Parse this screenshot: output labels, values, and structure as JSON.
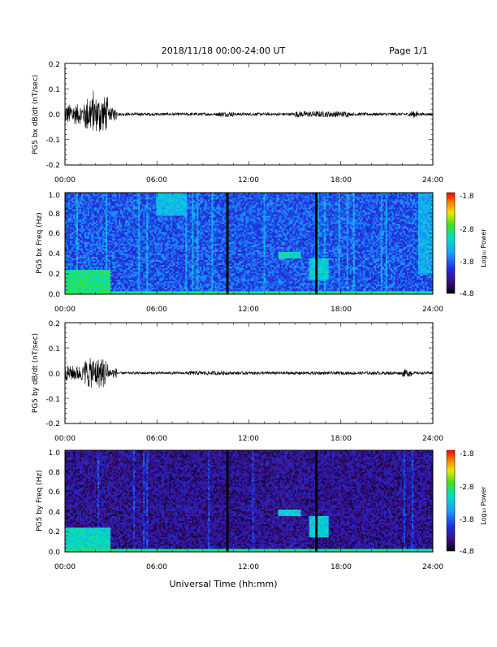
{
  "header": {
    "title": "2018/11/18  00:00-24:00 UT",
    "page": "Page 1/1"
  },
  "footer": {
    "xlabel": "Universal Time (hh:mm)"
  },
  "time_ticks": [
    "00:00",
    "06:00",
    "12:00",
    "18:00",
    "24:00"
  ],
  "colorbar": {
    "labels": [
      "-1.8",
      "-2.8",
      "-3.8",
      "-4.8"
    ],
    "title": "Log₁₀ Power"
  },
  "colors": {
    "stripe": "#000000",
    "line": "#000000"
  },
  "chart_data": [
    {
      "type": "line",
      "ylabel": "PG5 bx dB/dt (nT/sec)",
      "xlim": [
        0,
        24
      ],
      "ylim": [
        -0.2,
        0.2
      ],
      "yticks": [
        "0.2",
        "0.1",
        "0.0",
        "-0.1",
        "-0.2"
      ],
      "xticks": [
        "00:00",
        "06:00",
        "12:00",
        "18:00",
        "24:00"
      ],
      "activity": [
        {
          "t0": 0.0,
          "t1": 1.3,
          "amp": 0.04
        },
        {
          "t0": 1.3,
          "t1": 2.8,
          "amp": 0.07
        },
        {
          "t0": 2.8,
          "t1": 3.4,
          "amp": 0.025
        },
        {
          "t0": 3.4,
          "t1": 10.0,
          "amp": 0.006
        },
        {
          "t0": 10.0,
          "t1": 11.0,
          "amp": 0.01
        },
        {
          "t0": 11.0,
          "t1": 15.0,
          "amp": 0.006
        },
        {
          "t0": 15.0,
          "t1": 18.5,
          "amp": 0.012
        },
        {
          "t0": 18.5,
          "t1": 22.5,
          "amp": 0.006
        },
        {
          "t0": 22.5,
          "t1": 23.0,
          "amp": 0.014
        },
        {
          "t0": 23.0,
          "t1": 24.0,
          "amp": 0.006
        }
      ]
    },
    {
      "type": "heatmap",
      "ylabel": "PG5 bx Freq (Hz)",
      "xlim": [
        0,
        24
      ],
      "ylim": [
        0.0,
        1.0
      ],
      "yticks": [
        "1.0",
        "0.8",
        "0.6",
        "0.4",
        "0.2",
        "0.0"
      ],
      "xticks": [
        "00:00",
        "06:00",
        "12:00",
        "18:00",
        "24:00"
      ],
      "zlim": [
        -4.8,
        -1.8
      ],
      "base_level": -3.9,
      "data_gaps_hours": [
        10.6,
        16.4
      ],
      "features": [
        {
          "t0": 0.0,
          "t1": 3.0,
          "f0": 0.0,
          "f1": 0.25,
          "level": -3.0
        },
        {
          "t0": 15.9,
          "t1": 17.2,
          "f0": 0.15,
          "f1": 0.35,
          "level": -3.3
        },
        {
          "t0": 13.9,
          "t1": 15.4,
          "f0": 0.35,
          "f1": 0.42,
          "level": -3.2
        },
        {
          "t0": 6.0,
          "t1": 8.0,
          "f0": 0.78,
          "f1": 1.0,
          "level": -3.4
        },
        {
          "t0": 23.0,
          "t1": 24.0,
          "f0": 0.2,
          "f1": 1.0,
          "level": -3.5
        }
      ]
    },
    {
      "type": "line",
      "ylabel": "PG5 by dB/dt (nT/sec)",
      "xlim": [
        0,
        24
      ],
      "ylim": [
        -0.2,
        0.2
      ],
      "yticks": [
        "0.2",
        "0.1",
        "0.0",
        "-0.1",
        "-0.2"
      ],
      "xticks": [
        "00:00",
        "06:00",
        "12:00",
        "18:00",
        "24:00"
      ],
      "activity": [
        {
          "t0": 0.0,
          "t1": 1.3,
          "amp": 0.03
        },
        {
          "t0": 1.3,
          "t1": 2.8,
          "amp": 0.06
        },
        {
          "t0": 2.8,
          "t1": 3.4,
          "amp": 0.02
        },
        {
          "t0": 3.4,
          "t1": 8.0,
          "amp": 0.005
        },
        {
          "t0": 8.0,
          "t1": 10.5,
          "amp": 0.008
        },
        {
          "t0": 10.5,
          "t1": 22.0,
          "amp": 0.006
        },
        {
          "t0": 22.0,
          "t1": 22.6,
          "amp": 0.015
        },
        {
          "t0": 22.6,
          "t1": 24.0,
          "amp": 0.005
        }
      ]
    },
    {
      "type": "heatmap",
      "ylabel": "PG5 by Freq (Hz)",
      "xlim": [
        0,
        24
      ],
      "ylim": [
        0.0,
        1.0
      ],
      "yticks": [
        "1.0",
        "0.8",
        "0.6",
        "0.4",
        "0.2",
        "0.0"
      ],
      "xticks": [
        "00:00",
        "06:00",
        "12:00",
        "18:00",
        "24:00"
      ],
      "zlim": [
        -4.8,
        -1.8
      ],
      "base_level": -4.4,
      "data_gaps_hours": [
        10.6,
        16.4
      ],
      "features": [
        {
          "t0": 0.0,
          "t1": 3.0,
          "f0": 0.0,
          "f1": 0.25,
          "level": -3.2
        },
        {
          "t0": 15.9,
          "t1": 17.2,
          "f0": 0.15,
          "f1": 0.35,
          "level": -3.3
        },
        {
          "t0": 13.9,
          "t1": 15.4,
          "f0": 0.35,
          "f1": 0.42,
          "level": -3.3
        }
      ]
    }
  ]
}
